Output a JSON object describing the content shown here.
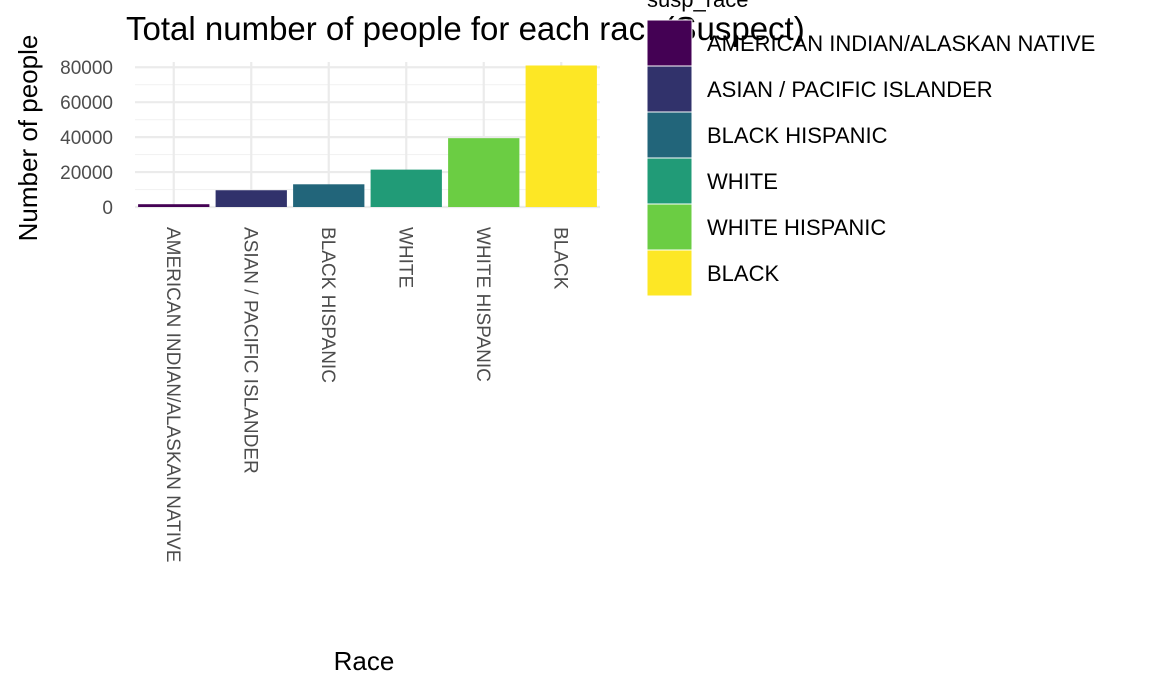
{
  "chart_data": {
    "type": "bar",
    "title": "Total number of people for each race(Suspect)",
    "xlabel": "Race",
    "ylabel": "Number of people",
    "categories": [
      "AMERICAN INDIAN/ALASKAN NATIVE",
      "ASIAN / PACIFIC ISLANDER",
      "BLACK HISPANIC",
      "WHITE",
      "WHITE HISPANIC",
      "BLACK"
    ],
    "values": [
      1600,
      9600,
      13000,
      21400,
      39400,
      81000
    ],
    "colors": [
      "#440154",
      "#31326b",
      "#22657a",
      "#219b77",
      "#6bcd43",
      "#fde725"
    ],
    "yticks": [
      0,
      20000,
      40000,
      60000,
      80000
    ],
    "ylim": [
      0,
      83000
    ],
    "grid": true,
    "legend": {
      "title": "susp_race",
      "placement": "right",
      "entries": [
        "AMERICAN INDIAN/ALASKAN NATIVE",
        "ASIAN / PACIFIC ISLANDER",
        "BLACK HISPANIC",
        "WHITE",
        "WHITE HISPANIC",
        "BLACK"
      ]
    }
  }
}
